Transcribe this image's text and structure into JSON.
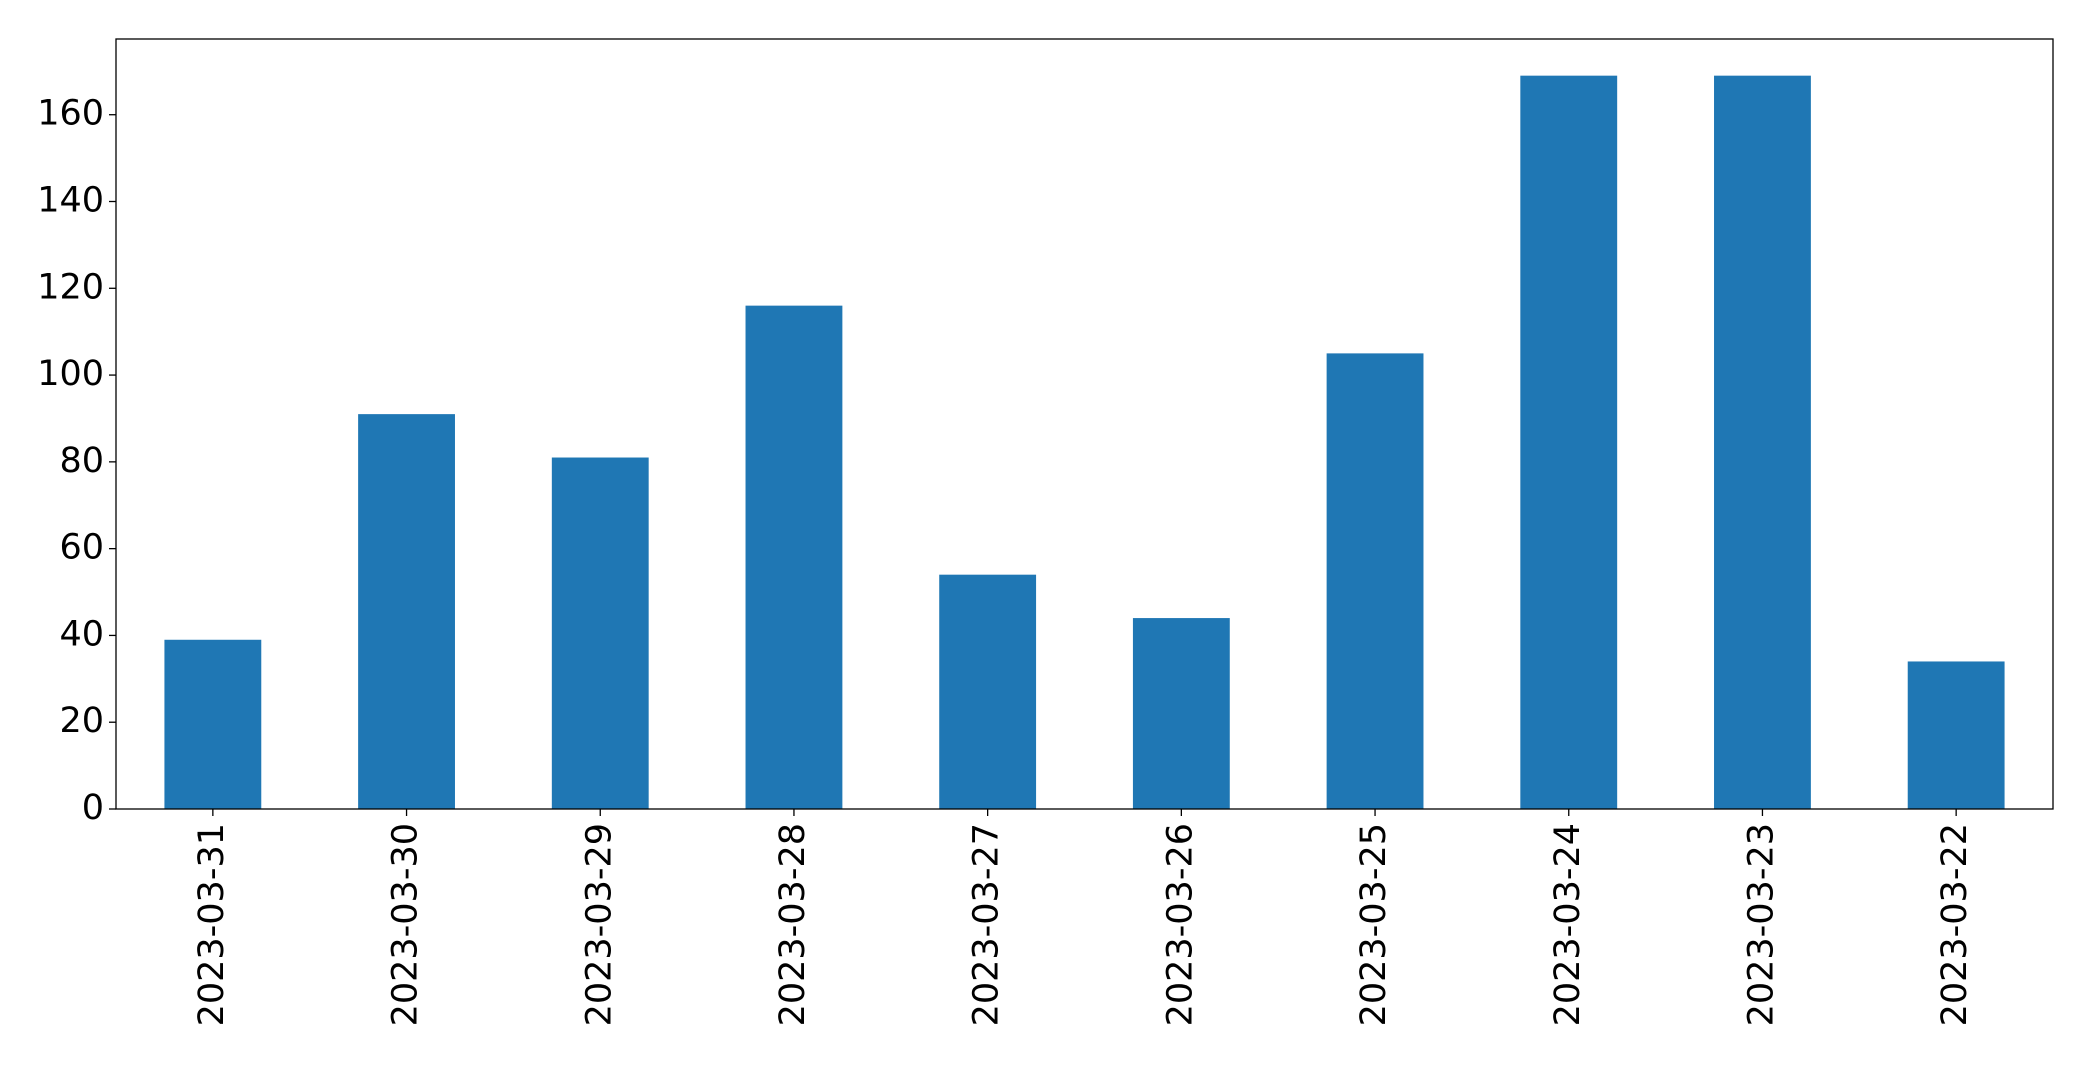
{
  "chart_data": {
    "type": "bar",
    "categories": [
      "2023-03-31",
      "2023-03-30",
      "2023-03-29",
      "2023-03-28",
      "2023-03-27",
      "2023-03-26",
      "2023-03-25",
      "2023-03-24",
      "2023-03-23",
      "2023-03-22"
    ],
    "values": [
      39,
      91,
      81,
      116,
      54,
      44,
      105,
      169,
      169,
      34
    ],
    "color": "#1f77b4",
    "ylim": [
      0,
      177.45
    ],
    "yticks": [
      0,
      20,
      40,
      60,
      80,
      100,
      120,
      140,
      160
    ],
    "grid": false
  }
}
